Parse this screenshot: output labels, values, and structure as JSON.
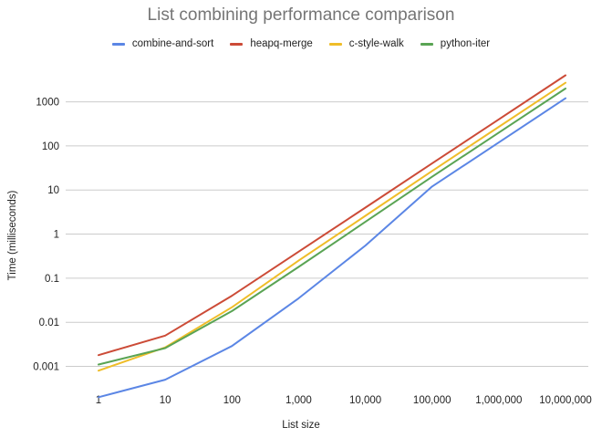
{
  "chart_data": {
    "type": "line",
    "title": "List combining performance comparison",
    "xlabel": "List size",
    "ylabel": "Time (milliseconds)",
    "x_scale": "log",
    "y_scale": "log",
    "categories": [
      "1",
      "10",
      "100",
      "1,000",
      "10,000",
      "100,000",
      "1,000,000",
      "10,000,000"
    ],
    "x": [
      1,
      10,
      100,
      1000,
      10000,
      100000,
      1000000,
      10000000
    ],
    "y_ticks": [
      "0.001",
      "0.01",
      "0.1",
      "1",
      "10",
      "100",
      "1000"
    ],
    "ylim": [
      0.00016,
      4500
    ],
    "grid": true,
    "legend_position": "top",
    "series": [
      {
        "name": "combine-and-sort",
        "color": "#5b86e5",
        "values": [
          0.0002,
          0.0005,
          0.0029,
          0.035,
          0.55,
          12,
          120,
          1200
        ]
      },
      {
        "name": "heapq-merge",
        "color": "#cc4b37",
        "values": [
          0.0018,
          0.005,
          0.04,
          0.4,
          4,
          40,
          400,
          4000
        ]
      },
      {
        "name": "c-style-walk",
        "color": "#efbd28",
        "values": [
          0.0008,
          0.0027,
          0.022,
          0.25,
          2.6,
          27,
          270,
          2700
        ]
      },
      {
        "name": "python-iter",
        "color": "#5aa454",
        "values": [
          0.0011,
          0.0026,
          0.018,
          0.18,
          1.9,
          20,
          200,
          2000
        ]
      }
    ]
  }
}
